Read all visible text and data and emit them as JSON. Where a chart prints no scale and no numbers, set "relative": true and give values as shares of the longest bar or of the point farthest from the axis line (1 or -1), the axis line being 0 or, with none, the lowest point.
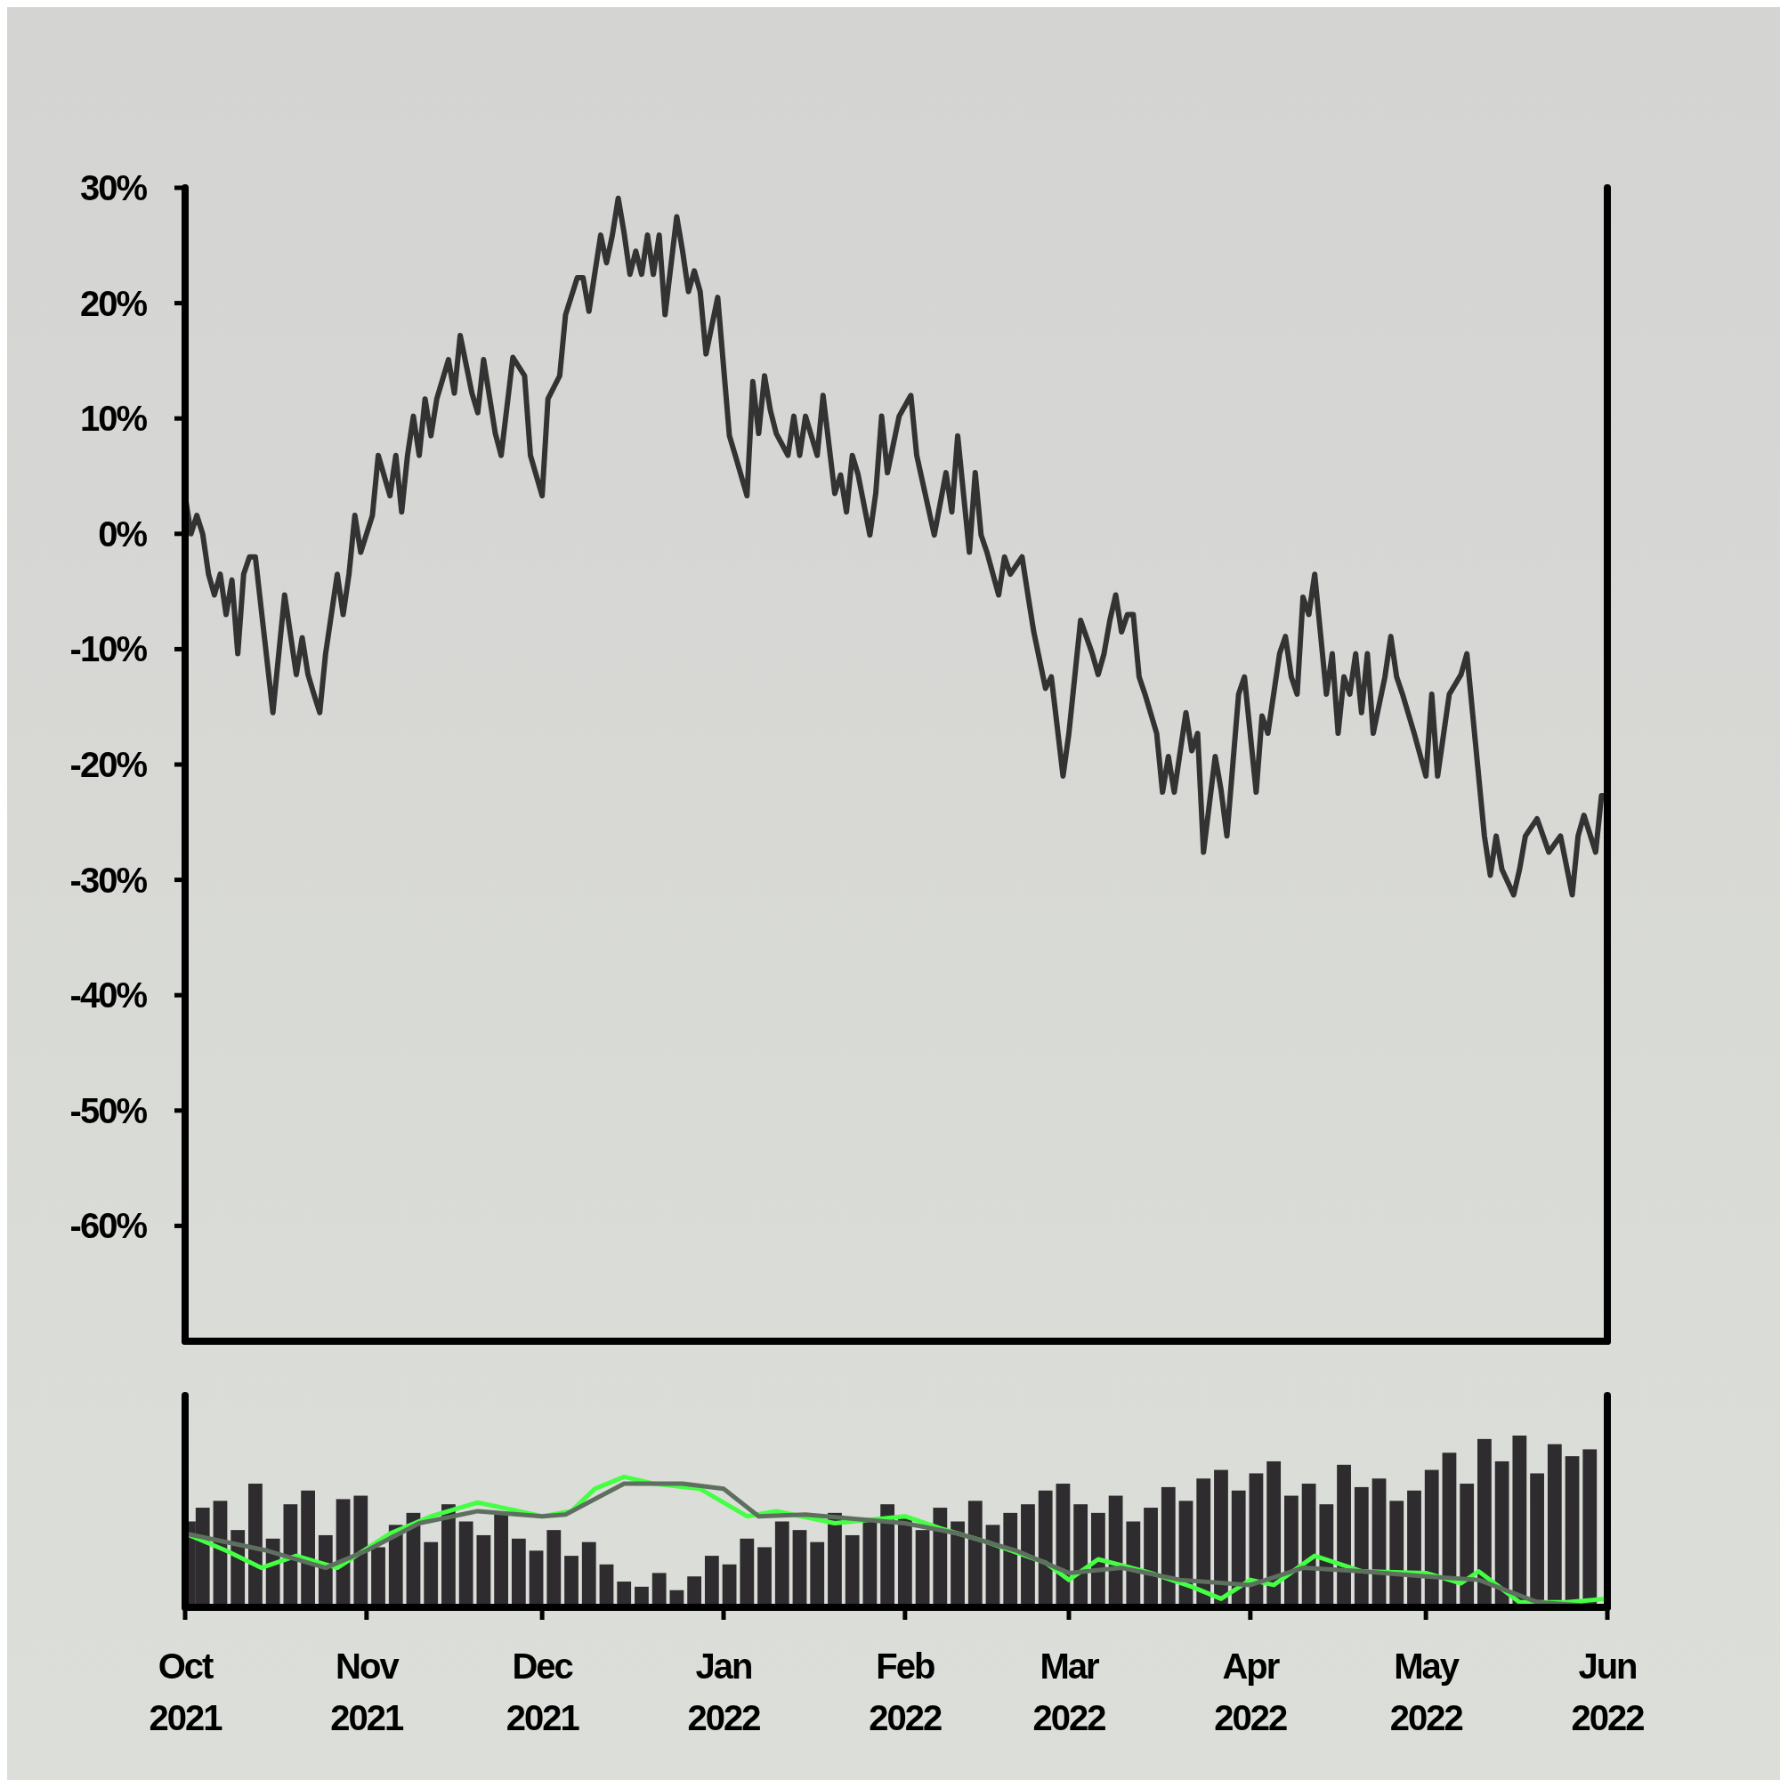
{
  "chart_data": [
    {
      "type": "line",
      "color": "#333333",
      "line_style": "solid",
      "tick_labels": "y",
      "xlim": [
        "2021-10-01",
        "2022-06-01"
      ],
      "ylim": [
        -70,
        30
      ],
      "yticks": [
        {
          "value": 30,
          "label": "30%"
        },
        {
          "value": 20,
          "label": "20%"
        },
        {
          "value": 10,
          "label": "10%"
        },
        {
          "value": 0,
          "label": "0%"
        },
        {
          "value": -10,
          "label": "-10%"
        },
        {
          "value": -20,
          "label": "-20%"
        },
        {
          "value": -30,
          "label": "-30%"
        },
        {
          "value": -40,
          "label": "-40%"
        },
        {
          "value": -50,
          "label": "-50%"
        },
        {
          "value": -60,
          "label": "-60%"
        }
      ],
      "x": [
        "2021-10-01",
        "2021-10-02",
        "2021-10-03",
        "2021-10-04",
        "2021-10-05",
        "2021-10-06",
        "2021-10-07",
        "2021-10-08",
        "2021-10-09",
        "2021-10-10",
        "2021-10-11",
        "2021-10-12",
        "2021-10-13",
        "2021-10-16",
        "2021-10-17",
        "2021-10-18",
        "2021-10-20",
        "2021-10-21",
        "2021-10-22",
        "2021-10-23",
        "2021-10-24",
        "2021-10-25",
        "2021-10-27",
        "2021-10-28",
        "2021-10-29",
        "2021-10-30",
        "2021-10-31",
        "2021-11-02",
        "2021-11-03",
        "2021-11-05",
        "2021-11-06",
        "2021-11-07",
        "2021-11-08",
        "2021-11-09",
        "2021-11-10",
        "2021-11-11",
        "2021-11-12",
        "2021-11-13",
        "2021-11-15",
        "2021-11-16",
        "2021-11-17",
        "2021-11-19",
        "2021-11-20",
        "2021-11-21",
        "2021-11-23",
        "2021-11-24",
        "2021-11-26",
        "2021-11-28",
        "2021-11-29",
        "2021-12-01",
        "2021-12-02",
        "2021-12-04",
        "2021-12-05",
        "2021-12-07",
        "2021-12-08",
        "2021-12-09",
        "2021-12-11",
        "2021-12-12",
        "2021-12-13",
        "2021-12-14",
        "2021-12-15",
        "2021-12-16",
        "2021-12-17",
        "2021-12-18",
        "2021-12-19",
        "2021-12-20",
        "2021-12-21",
        "2021-12-22",
        "2021-12-24",
        "2021-12-25",
        "2021-12-26",
        "2021-12-27",
        "2021-12-28",
        "2021-12-29",
        "2021-12-31",
        "2022-01-02",
        "2022-01-03",
        "2022-01-05",
        "2022-01-06",
        "2022-01-07",
        "2022-01-08",
        "2022-01-09",
        "2022-01-10",
        "2022-01-12",
        "2022-01-13",
        "2022-01-14",
        "2022-01-15",
        "2022-01-17",
        "2022-01-18",
        "2022-01-20",
        "2022-01-21",
        "2022-01-22",
        "2022-01-23",
        "2022-01-24",
        "2022-01-26",
        "2022-01-27",
        "2022-01-28",
        "2022-01-29",
        "2022-01-31",
        "2022-02-02",
        "2022-02-03",
        "2022-02-06",
        "2022-02-08",
        "2022-02-09",
        "2022-02-10",
        "2022-02-12",
        "2022-02-13",
        "2022-02-14",
        "2022-02-15",
        "2022-02-17",
        "2022-02-18",
        "2022-02-19",
        "2022-02-21",
        "2022-02-22",
        "2022-02-23",
        "2022-02-25",
        "2022-02-26",
        "2022-02-28",
        "2022-03-01",
        "2022-03-02",
        "2022-03-03",
        "2022-03-05",
        "2022-03-06",
        "2022-03-07",
        "2022-03-08",
        "2022-03-09",
        "2022-03-10",
        "2022-03-11",
        "2022-03-12",
        "2022-03-13",
        "2022-03-14",
        "2022-03-16",
        "2022-03-17",
        "2022-03-18",
        "2022-03-19",
        "2022-03-21",
        "2022-03-22",
        "2022-03-23",
        "2022-03-24",
        "2022-03-26",
        "2022-03-27",
        "2022-03-28",
        "2022-03-30",
        "2022-03-31",
        "2022-04-02",
        "2022-04-03",
        "2022-04-04",
        "2022-04-06",
        "2022-04-07",
        "2022-04-08",
        "2022-04-09",
        "2022-04-10",
        "2022-04-11",
        "2022-04-12",
        "2022-04-14",
        "2022-04-15",
        "2022-04-16",
        "2022-04-17",
        "2022-04-18",
        "2022-04-19",
        "2022-04-20",
        "2022-04-21",
        "2022-04-22",
        "2022-04-24",
        "2022-04-25",
        "2022-04-26",
        "2022-04-27",
        "2022-04-29",
        "2022-05-01",
        "2022-05-02",
        "2022-05-03",
        "2022-05-05",
        "2022-05-07",
        "2022-05-08",
        "2022-05-11",
        "2022-05-12",
        "2022-05-13",
        "2022-05-14",
        "2022-05-16",
        "2022-05-17",
        "2022-05-18",
        "2022-05-20",
        "2022-05-22",
        "2022-05-24",
        "2022-05-26",
        "2022-05-27",
        "2022-05-28",
        "2022-05-30",
        "2022-05-31",
        "2022-06-01"
      ],
      "values": [
        3.3,
        0,
        1.6,
        0,
        -3.5,
        -5.3,
        -3.5,
        -7,
        -4,
        -10.4,
        -3.5,
        -2,
        -2,
        -15.5,
        -10.4,
        -5.3,
        -12.2,
        -9,
        -12.2,
        -13.9,
        -15.5,
        -10.4,
        -3.5,
        -7,
        -3.5,
        1.6,
        -1.6,
        1.6,
        6.8,
        3.3,
        6.8,
        1.9,
        6.8,
        10.2,
        6.8,
        11.7,
        8.5,
        11.7,
        15.1,
        12.2,
        17.2,
        12.2,
        10.5,
        15.1,
        8.7,
        6.8,
        15.3,
        13.7,
        6.8,
        3.3,
        11.7,
        13.7,
        19,
        22.2,
        22.2,
        19.3,
        25.9,
        23.5,
        25.9,
        29.1,
        26.1,
        22.5,
        24.5,
        22.5,
        25.9,
        22.5,
        25.9,
        19,
        27.5,
        24.5,
        21,
        22.8,
        21,
        15.6,
        20.5,
        8.5,
        6.8,
        3.3,
        13.2,
        8.7,
        13.7,
        10.7,
        8.7,
        6.8,
        10.2,
        6.8,
        10.2,
        6.8,
        12,
        3.5,
        5.1,
        1.9,
        6.8,
        5.1,
        -0.1,
        3.5,
        10.2,
        5.3,
        10.2,
        12,
        6.8,
        -0.1,
        5.3,
        1.9,
        8.5,
        -1.6,
        5.3,
        -0.1,
        -1.6,
        -5.3,
        -2,
        -3.5,
        -2,
        -5.3,
        -8.5,
        -13.4,
        -12.4,
        -21,
        -17.3,
        -12.4,
        -7.5,
        -10.4,
        -12.2,
        -10.4,
        -7.5,
        -5.3,
        -8.5,
        -7,
        -7,
        -12.4,
        -13.9,
        -17.3,
        -22.4,
        -19.3,
        -22.4,
        -15.5,
        -18.8,
        -17.3,
        -27.6,
        -19.3,
        -22.2,
        -26.2,
        -13.9,
        -12.4,
        -22.4,
        -15.8,
        -17.3,
        -10.4,
        -8.9,
        -12.4,
        -13.9,
        -5.5,
        -7,
        -3.5,
        -13.9,
        -10.4,
        -17.3,
        -12.4,
        -13.9,
        -10.4,
        -15.5,
        -10.4,
        -17.3,
        -12.4,
        -8.9,
        -12.4,
        -13.9,
        -17.3,
        -21,
        -13.9,
        -21,
        -13.9,
        -12.2,
        -10.4,
        -26.2,
        -29.6,
        -26.2,
        -29.1,
        -31.3,
        -29.1,
        -26.2,
        -24.7,
        -27.6,
        -26.2,
        -31.3,
        -26.2,
        -24.4,
        -27.6,
        -22.7,
        -22.7
      ]
    },
    {
      "type": "bar",
      "relative": true,
      "tick_labels": "x",
      "xlim": [
        "2021-10-01",
        "2022-06-01"
      ],
      "xticks": [
        {
          "value": "2021-10-01",
          "label": "Oct 2021"
        },
        {
          "value": "2021-11-01",
          "label": "Nov 2021"
        },
        {
          "value": "2021-12-01",
          "label": "Dec 2021"
        },
        {
          "value": "2022-01-01",
          "label": "Jan 2022"
        },
        {
          "value": "2022-02-01",
          "label": "Feb 2022"
        },
        {
          "value": "2022-03-01",
          "label": "Mar 2022"
        },
        {
          "value": "2022-04-01",
          "label": "Apr 2022"
        },
        {
          "value": "2022-05-01",
          "label": "May 2022"
        },
        {
          "value": "2022-06-01",
          "label": "Jun 2022"
        }
      ],
      "x": [
        "2021-10-02",
        "2021-10-04",
        "2021-10-07",
        "2021-10-10",
        "2021-10-13",
        "2021-10-16",
        "2021-10-19",
        "2021-10-22",
        "2021-10-25",
        "2021-10-28",
        "2021-10-31",
        "2021-11-03",
        "2021-11-06",
        "2021-11-09",
        "2021-11-12",
        "2021-11-15",
        "2021-11-18",
        "2021-11-21",
        "2021-11-24",
        "2021-11-27",
        "2021-11-30",
        "2021-12-03",
        "2021-12-06",
        "2021-12-09",
        "2021-12-12",
        "2021-12-15",
        "2021-12-18",
        "2021-12-21",
        "2021-12-24",
        "2021-12-27",
        "2021-12-30",
        "2022-01-02",
        "2022-01-05",
        "2022-01-08",
        "2022-01-11",
        "2022-01-14",
        "2022-01-17",
        "2022-01-20",
        "2022-01-23",
        "2022-01-26",
        "2022-01-29",
        "2022-02-01",
        "2022-02-04",
        "2022-02-07",
        "2022-02-10",
        "2022-02-13",
        "2022-02-16",
        "2022-02-19",
        "2022-02-22",
        "2022-02-25",
        "2022-02-28",
        "2022-03-03",
        "2022-03-06",
        "2022-03-09",
        "2022-03-12",
        "2022-03-15",
        "2022-03-18",
        "2022-03-21",
        "2022-03-24",
        "2022-03-27",
        "2022-03-30",
        "2022-04-02",
        "2022-04-05",
        "2022-04-08",
        "2022-04-11",
        "2022-04-14",
        "2022-04-17",
        "2022-04-20",
        "2022-04-23",
        "2022-04-26",
        "2022-04-29",
        "2022-05-02",
        "2022-05-05",
        "2022-05-08",
        "2022-05-11",
        "2022-05-14",
        "2022-05-17",
        "2022-05-20",
        "2022-05-23",
        "2022-05-26",
        "2022-05-29"
      ],
      "series": [
        {
          "color": "#2e2c2e",
          "values": [
            0.5,
            0.58,
            0.62,
            0.45,
            0.72,
            0.4,
            0.6,
            0.68,
            0.42,
            0.63,
            0.65,
            0.35,
            0.48,
            0.55,
            0.38,
            0.6,
            0.5,
            0.42,
            0.55,
            0.4,
            0.33,
            0.45,
            0.3,
            0.38,
            0.25,
            0.15,
            0.12,
            0.2,
            0.1,
            0.18,
            0.3,
            0.25,
            0.4,
            0.35,
            0.5,
            0.45,
            0.38,
            0.55,
            0.42,
            0.5,
            0.6,
            0.52,
            0.45,
            0.58,
            0.5,
            0.62,
            0.48,
            0.55,
            0.6,
            0.68,
            0.72,
            0.6,
            0.55,
            0.65,
            0.5,
            0.58,
            0.7,
            0.62,
            0.75,
            0.8,
            0.68,
            0.78,
            0.85,
            0.65,
            0.72,
            0.6,
            0.83,
            0.7,
            0.75,
            0.62,
            0.68,
            0.8,
            0.9,
            0.72,
            0.98,
            0.85,
            1,
            0.78,
            0.95,
            0.88,
            0.92
          ]
        },
        {
          "type": "line",
          "color": "#44ff44",
          "x": [
            "2021-10-01",
            "2021-10-08",
            "2021-10-14",
            "2021-10-20",
            "2021-10-27",
            "2021-11-05",
            "2021-11-12",
            "2021-11-20",
            "2021-11-27",
            "2021-12-01",
            "2021-12-06",
            "2021-12-10",
            "2021-12-15",
            "2021-12-20",
            "2021-12-28",
            "2022-01-05",
            "2022-01-10",
            "2022-01-20",
            "2022-02-01",
            "2022-02-07",
            "2022-02-15",
            "2022-02-25",
            "2022-03-01",
            "2022-03-06",
            "2022-03-15",
            "2022-03-22",
            "2022-03-27",
            "2022-04-01",
            "2022-04-05",
            "2022-04-12",
            "2022-04-20",
            "2022-05-01",
            "2022-05-07",
            "2022-05-10",
            "2022-05-17",
            "2022-05-25",
            "2022-06-01"
          ],
          "values": [
            0.43,
            0.33,
            0.23,
            0.3,
            0.23,
            0.43,
            0.53,
            0.61,
            0.56,
            0.53,
            0.56,
            0.69,
            0.76,
            0.72,
            0.69,
            0.53,
            0.56,
            0.49,
            0.53,
            0.46,
            0.38,
            0.26,
            0.16,
            0.28,
            0.2,
            0.12,
            0.05,
            0.16,
            0.13,
            0.3,
            0.21,
            0.2,
            0.14,
            0.21,
            0.03,
            0.03,
            0.05
          ]
        },
        {
          "type": "line",
          "color": "#5f6f5f",
          "x": [
            "2021-10-01",
            "2021-10-15",
            "2021-10-25",
            "2021-11-01",
            "2021-11-10",
            "2021-11-20",
            "2021-12-01",
            "2021-12-05",
            "2021-12-15",
            "2021-12-25",
            "2022-01-01",
            "2022-01-07",
            "2022-01-15",
            "2022-02-01",
            "2022-02-10",
            "2022-02-20",
            "2022-03-01",
            "2022-03-10",
            "2022-03-20",
            "2022-04-01",
            "2022-04-10",
            "2022-04-20",
            "2022-05-01",
            "2022-05-10",
            "2022-05-20",
            "2022-06-01"
          ],
          "values": [
            0.43,
            0.33,
            0.23,
            0.33,
            0.49,
            0.56,
            0.53,
            0.54,
            0.72,
            0.72,
            0.69,
            0.53,
            0.54,
            0.49,
            0.43,
            0.33,
            0.2,
            0.23,
            0.16,
            0.13,
            0.23,
            0.21,
            0.18,
            0.16,
            0.03,
            0
          ]
        }
      ]
    }
  ]
}
